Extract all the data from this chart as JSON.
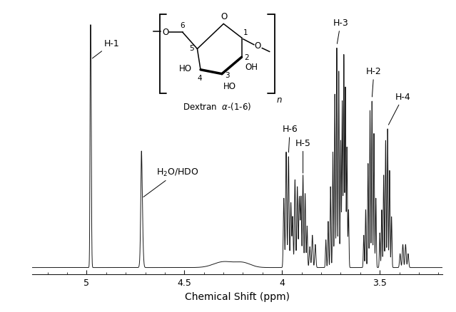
{
  "xlabel": "Chemical Shift (ppm)",
  "xlim": [
    5.28,
    3.18
  ],
  "ylim": [
    -0.03,
    1.12
  ],
  "background_color": "#ffffff",
  "line_color": "#1a1a1a",
  "xticks": [
    5.0,
    4.5,
    4.0,
    3.5
  ],
  "tick_label_fontsize": 9,
  "axis_label_fontsize": 10,
  "annotation_fontsize": 9,
  "figsize": [
    6.39,
    4.39
  ],
  "dpi": 100
}
